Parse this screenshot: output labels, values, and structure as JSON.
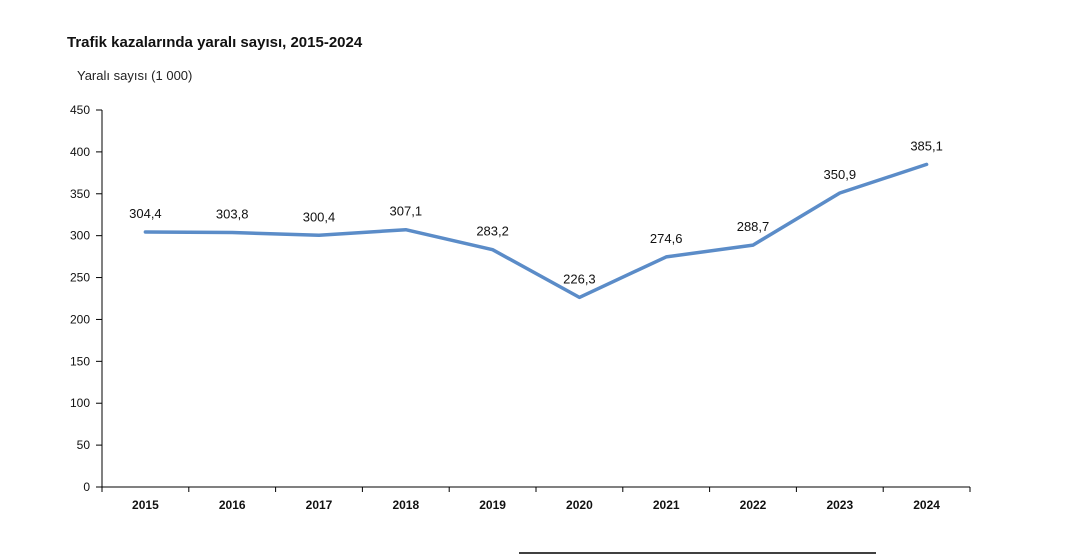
{
  "chart_data": {
    "type": "line",
    "title": "Trafik kazalarında yaralı sayısı, 2015-2024",
    "ylabel": "Yaralı sayısı (1 000)",
    "xlabel": "",
    "categories": [
      "2015",
      "2016",
      "2017",
      "2018",
      "2019",
      "2020",
      "2021",
      "2022",
      "2023",
      "2024"
    ],
    "series": [
      {
        "values": [
          304.4,
          303.8,
          300.4,
          307.1,
          283.2,
          226.3,
          274.6,
          288.7,
          350.9,
          385.1
        ],
        "labels": [
          "304,4",
          "303,8",
          "300,4",
          "307,1",
          "283,2",
          "226,3",
          "274,6",
          "288,7",
          "350,9",
          "385,1"
        ],
        "color": "#5b8cc8"
      }
    ],
    "ylim": [
      0,
      450
    ],
    "yticks": [
      0,
      50,
      100,
      150,
      200,
      250,
      300,
      350,
      400,
      450
    ],
    "grid": false,
    "legend": "none"
  },
  "colors": {
    "line": "#5b8cc8",
    "axis": "#000000",
    "footer_rule": "#000000"
  }
}
